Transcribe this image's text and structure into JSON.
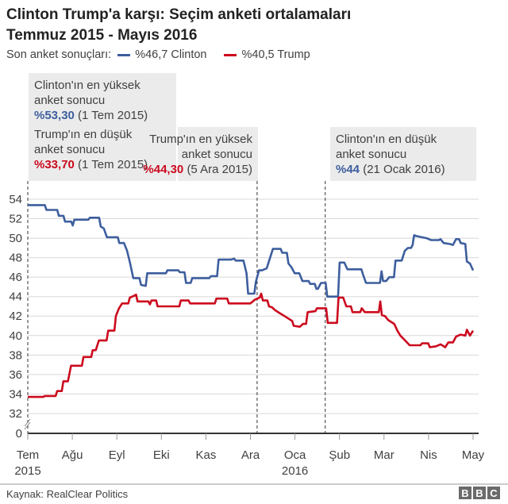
{
  "title": {
    "line1": "Clinton Trump'a karşı: Seçim anketi ortalamaları",
    "line2": "Temmuz 2015 - Mayıs 2016"
  },
  "legend": {
    "prefix": "Son anket sonuçları:",
    "clinton": "%46,7 Clinton",
    "trump": "%40,5 Trump"
  },
  "colors": {
    "clinton": "#3d5e9e",
    "trump": "#cc0a1e",
    "grid": "#d8d8d8",
    "box": "#ebebeb"
  },
  "annotations": {
    "clinton_high": {
      "line1": "Clinton'ın en yüksek",
      "line2": "anket sonucu",
      "value": "%53,30",
      "date": "(1 Tem 2015)"
    },
    "trump_low": {
      "line1": "Trump'ın en düşük",
      "line2": "anket sonucu",
      "value": "%33,70",
      "date": "(1 Tem 2015)"
    },
    "trump_high": {
      "line1": "Trump'ın en yüksek",
      "line2": "anket sonucu",
      "value": "%44,30",
      "date": "(5 Ara 2015)"
    },
    "clinton_low": {
      "line1": "Clinton'ın en düşük",
      "line2": "anket sonucu",
      "value": "%44",
      "date": "(21 Ocak 2016)"
    }
  },
  "footer": {
    "source": "Kaynak: RealClear Politics",
    "logo": [
      "B",
      "B",
      "C"
    ]
  },
  "chart_data": {
    "type": "line",
    "title": "Clinton Trump'a karşı: Seçim anketi ortalamaları",
    "subtitle": "Temmuz 2015 - Mayıs 2016",
    "xlabel": "",
    "ylabel": "",
    "x_unit": "months since 1 Jul 2015",
    "xlim": [
      0,
      10.1
    ],
    "ylim": [
      32,
      54
    ],
    "y_axis_break": true,
    "y_ticks": [
      54,
      52,
      50,
      48,
      46,
      44,
      42,
      40,
      38,
      36,
      34,
      32
    ],
    "y_zero_label": "0",
    "x_ticks": [
      {
        "x": 0,
        "label": "Tem",
        "sub": "2015"
      },
      {
        "x": 1,
        "label": "Ağu",
        "sub": ""
      },
      {
        "x": 2,
        "label": "Eyl",
        "sub": ""
      },
      {
        "x": 3,
        "label": "Eki",
        "sub": ""
      },
      {
        "x": 4,
        "label": "Kas",
        "sub": ""
      },
      {
        "x": 5,
        "label": "Ara",
        "sub": ""
      },
      {
        "x": 6,
        "label": "Oca",
        "sub": "2016"
      },
      {
        "x": 7,
        "label": "Şub",
        "sub": ""
      },
      {
        "x": 8,
        "label": "Mar",
        "sub": ""
      },
      {
        "x": 9,
        "label": "Nis",
        "sub": ""
      },
      {
        "x": 10,
        "label": "May",
        "sub": ""
      }
    ],
    "reference_lines": [
      {
        "x": 0,
        "label": "1 Tem 2015"
      },
      {
        "x": 5.15,
        "label": "5 Ara 2015"
      },
      {
        "x": 6.68,
        "label": "21 Ocak 2016"
      }
    ],
    "grid": true,
    "series": [
      {
        "name": "Clinton",
        "color": "#3d5e9e",
        "points": [
          [
            0,
            53.4
          ],
          [
            0.55,
            53.4
          ],
          [
            0.6,
            52.9
          ],
          [
            0.95,
            52.9
          ],
          [
            1.0,
            52.3
          ],
          [
            1.15,
            52.3
          ],
          [
            1.2,
            51.7
          ],
          [
            1.4,
            51.7
          ],
          [
            1.45,
            51.3
          ],
          [
            1.5,
            51.9
          ],
          [
            1.95,
            51.9
          ],
          [
            2.0,
            52.1
          ],
          [
            2.3,
            52.1
          ],
          [
            2.35,
            51.2
          ],
          [
            2.45,
            51.0
          ],
          [
            2.55,
            50.1
          ],
          [
            2.9,
            50.1
          ],
          [
            2.95,
            49.5
          ],
          [
            3.1,
            49.5
          ],
          [
            3.2,
            48.7
          ],
          [
            3.3,
            47.4
          ],
          [
            3.4,
            45.9
          ],
          [
            3.6,
            45.9
          ],
          [
            3.65,
            45.2
          ],
          [
            3.8,
            45.1
          ],
          [
            3.85,
            46.4
          ],
          [
            4.45,
            46.4
          ],
          [
            4.5,
            46.7
          ],
          [
            4.85,
            46.7
          ],
          [
            4.9,
            46.5
          ],
          [
            5.05,
            46.5
          ],
          [
            5.1,
            45.4
          ],
          [
            5.25,
            45.4
          ],
          [
            5.3,
            45.9
          ],
          [
            5.85,
            45.9
          ],
          [
            5.9,
            46.1
          ],
          [
            6.1,
            46.1
          ],
          [
            6.15,
            47.8
          ],
          [
            6.55,
            47.8
          ],
          [
            6.65,
            47.9
          ],
          [
            6.7,
            47.7
          ],
          [
            6.95,
            47.7
          ],
          [
            7.05,
            46.4
          ],
          [
            7.1,
            44.3
          ],
          [
            7.3,
            44.3
          ],
          [
            7.35,
            45.5
          ],
          [
            7.45,
            46.7
          ],
          [
            7.55,
            46.7
          ],
          [
            7.7,
            46.9
          ],
          [
            7.8,
            47.9
          ],
          [
            7.9,
            48.9
          ],
          [
            8.15,
            48.9
          ],
          [
            8.2,
            48.5
          ],
          [
            8.35,
            48.5
          ],
          [
            8.4,
            47.4
          ],
          [
            8.5,
            47.0
          ],
          [
            8.6,
            46.4
          ],
          [
            8.75,
            46.4
          ],
          [
            8.85,
            45.6
          ],
          [
            9.05,
            45.6
          ],
          [
            9.1,
            45.3
          ],
          [
            9.25,
            45.3
          ],
          [
            9.3,
            44.8
          ],
          [
            9.35,
            44.8
          ],
          [
            9.45,
            45.4
          ],
          [
            9.6,
            45.4
          ],
          [
            9.65,
            44.0
          ],
          [
            10.0,
            44.0
          ],
          [
            10.05,
            47.5
          ],
          [
            10.2,
            47.5
          ],
          [
            10.3,
            46.8
          ],
          [
            10.75,
            46.8
          ],
          [
            10.8,
            46.3
          ],
          [
            10.9,
            45.4
          ],
          [
            11.35,
            45.4
          ],
          [
            11.4,
            46.6
          ],
          [
            11.45,
            45.6
          ],
          [
            11.55,
            45.6
          ],
          [
            11.65,
            46.0
          ],
          [
            11.8,
            46.0
          ],
          [
            11.85,
            47.7
          ],
          [
            12.05,
            47.7
          ],
          [
            12.15,
            48.7
          ],
          [
            12.25,
            49.0
          ],
          [
            12.35,
            49.0
          ],
          [
            12.4,
            49.3
          ],
          [
            12.45,
            50.3
          ],
          [
            12.55,
            50.2
          ],
          [
            12.85,
            50.0
          ],
          [
            13.0,
            49.8
          ],
          [
            13.25,
            49.8
          ],
          [
            13.3,
            49.9
          ],
          [
            13.4,
            49.5
          ],
          [
            13.6,
            49.4
          ],
          [
            13.7,
            49.3
          ],
          [
            13.8,
            49.9
          ],
          [
            13.9,
            49.9
          ],
          [
            13.95,
            49.5
          ],
          [
            14.1,
            49.4
          ],
          [
            14.15,
            47.6
          ],
          [
            14.25,
            47.4
          ],
          [
            14.35,
            46.7
          ]
        ]
      },
      {
        "name": "Trump",
        "color": "#cc0a1e",
        "points": [
          [
            0,
            33.7
          ],
          [
            0.5,
            33.7
          ],
          [
            0.55,
            33.8
          ],
          [
            0.9,
            33.8
          ],
          [
            0.95,
            34.3
          ],
          [
            1.1,
            34.3
          ],
          [
            1.15,
            35.3
          ],
          [
            1.3,
            35.3
          ],
          [
            1.4,
            36.9
          ],
          [
            1.75,
            36.9
          ],
          [
            1.8,
            37.8
          ],
          [
            2.05,
            37.8
          ],
          [
            2.1,
            38.5
          ],
          [
            2.2,
            38.5
          ],
          [
            2.3,
            39.5
          ],
          [
            2.55,
            39.5
          ],
          [
            2.6,
            40.5
          ],
          [
            2.8,
            40.5
          ],
          [
            2.85,
            42.0
          ],
          [
            2.95,
            42.8
          ],
          [
            3.05,
            43.3
          ],
          [
            3.25,
            43.3
          ],
          [
            3.3,
            43.9
          ],
          [
            3.45,
            44.1
          ],
          [
            3.5,
            44.2
          ],
          [
            3.55,
            43.5
          ],
          [
            3.9,
            43.5
          ],
          [
            3.95,
            43.2
          ],
          [
            4.0,
            43.6
          ],
          [
            4.15,
            43.6
          ],
          [
            4.2,
            43.0
          ],
          [
            4.9,
            43.0
          ],
          [
            4.95,
            43.6
          ],
          [
            5.2,
            43.6
          ],
          [
            5.25,
            43.3
          ],
          [
            6.05,
            43.3
          ],
          [
            6.1,
            43.8
          ],
          [
            6.45,
            43.8
          ],
          [
            6.5,
            43.3
          ],
          [
            7.2,
            43.3
          ],
          [
            7.35,
            43.7
          ],
          [
            7.5,
            43.9
          ],
          [
            7.55,
            44.3
          ],
          [
            7.6,
            43.6
          ],
          [
            7.75,
            43.6
          ],
          [
            7.8,
            43.0
          ],
          [
            7.9,
            42.9
          ],
          [
            8.0,
            42.6
          ],
          [
            8.15,
            42.3
          ],
          [
            8.3,
            42.0
          ],
          [
            8.4,
            41.8
          ],
          [
            8.55,
            41.5
          ],
          [
            8.6,
            41.0
          ],
          [
            8.8,
            40.9
          ],
          [
            8.9,
            41.2
          ],
          [
            9.0,
            41.2
          ],
          [
            9.05,
            42.4
          ],
          [
            9.3,
            42.5
          ],
          [
            9.35,
            42.8
          ],
          [
            9.65,
            42.8
          ],
          [
            9.7,
            41.3
          ],
          [
            10.0,
            41.3
          ],
          [
            10.05,
            43.9
          ],
          [
            10.2,
            43.9
          ],
          [
            10.3,
            43.0
          ],
          [
            10.45,
            43.0
          ],
          [
            10.5,
            42.4
          ],
          [
            10.75,
            42.4
          ],
          [
            10.8,
            42.8
          ],
          [
            10.9,
            42.4
          ],
          [
            11.35,
            42.4
          ],
          [
            11.4,
            43.5
          ],
          [
            11.45,
            42.1
          ],
          [
            11.55,
            42.0
          ],
          [
            11.65,
            41.6
          ],
          [
            11.85,
            41.2
          ],
          [
            11.95,
            40.5
          ],
          [
            12.05,
            40.0
          ],
          [
            12.2,
            39.5
          ],
          [
            12.35,
            39.0
          ],
          [
            12.7,
            39.0
          ],
          [
            12.75,
            39.2
          ],
          [
            12.95,
            39.2
          ],
          [
            13.0,
            38.8
          ],
          [
            13.2,
            38.9
          ],
          [
            13.35,
            39.1
          ],
          [
            13.5,
            38.8
          ],
          [
            13.6,
            39.3
          ],
          [
            13.75,
            39.3
          ],
          [
            13.85,
            39.9
          ],
          [
            14.0,
            40.1
          ],
          [
            14.15,
            40.0
          ],
          [
            14.2,
            40.6
          ],
          [
            14.3,
            40.0
          ],
          [
            14.4,
            40.5
          ]
        ]
      }
    ]
  }
}
